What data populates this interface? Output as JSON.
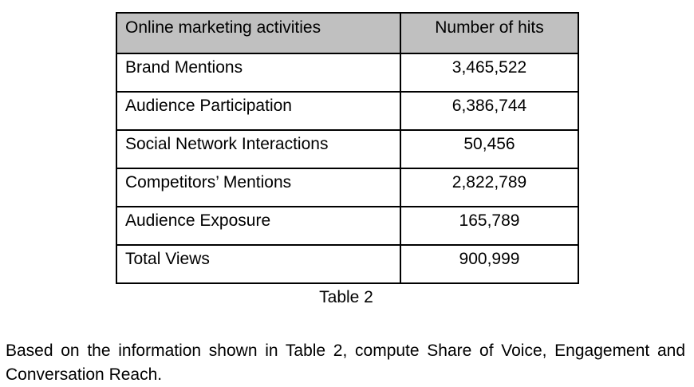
{
  "table": {
    "headers": [
      "Online marketing activities",
      "Number of hits"
    ],
    "rows": [
      {
        "activity": "Brand Mentions",
        "hits": "3,465,522"
      },
      {
        "activity": "Audience Participation",
        "hits": "6,386,744"
      },
      {
        "activity": "Social Network Interactions",
        "hits": "50,456"
      },
      {
        "activity": "Competitors’ Mentions",
        "hits": "2,822,789"
      },
      {
        "activity": "Audience Exposure",
        "hits": "165,789"
      },
      {
        "activity": "Total Views",
        "hits": "900,999"
      }
    ],
    "caption": "Table 2",
    "header_bg": "#c0c0c0",
    "border_color": "#000000"
  },
  "question": {
    "text": "Based on the information shown in Table 2, compute Share of Voice, Engagement and Conversation Reach."
  }
}
